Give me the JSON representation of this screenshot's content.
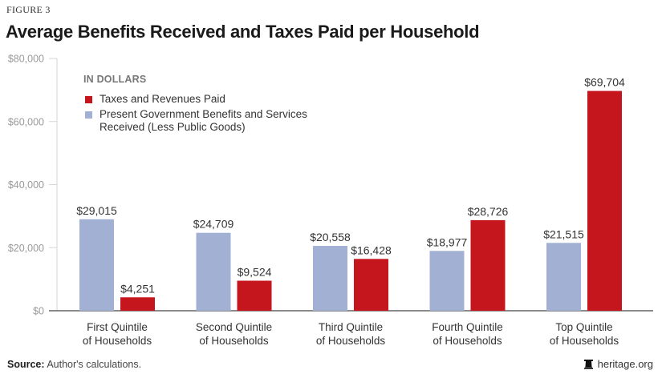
{
  "figure_label": "FIGURE 3",
  "title": "Average Benefits Received and Taxes Paid per Household",
  "legend": {
    "title": "IN DOLLARS",
    "items": [
      {
        "label": "Taxes and Revenues Paid",
        "color": "#c4161c"
      },
      {
        "label": "Present Government Benefits and Services Received (Less Public Goods)",
        "color": "#a2b1d3"
      }
    ]
  },
  "source": {
    "prefix": "Source:",
    "text": "Author's calculations."
  },
  "credit": {
    "icon": "liberty-bell-icon",
    "text": "heritage.org"
  },
  "chart_data": {
    "type": "bar",
    "title": "Average Benefits Received and Taxes Paid per Household",
    "xlabel": "",
    "ylabel": "",
    "ylim": [
      0,
      80000
    ],
    "yticks": [
      0,
      20000,
      40000,
      60000,
      80000
    ],
    "ytick_labels": [
      "$0",
      "$20,000",
      "$40,000",
      "$60,000",
      "$80,000"
    ],
    "grid": false,
    "legend_position": "top-left",
    "categories": [
      [
        "First Quintile",
        "of Households"
      ],
      [
        "Second Quintile",
        "of Households"
      ],
      [
        "Third Quintile",
        "of Households"
      ],
      [
        "Fourth Quintile",
        "of Households"
      ],
      [
        "Top Quintile",
        "of Households"
      ]
    ],
    "series": [
      {
        "name": "Present Government Benefits and Services Received (Less Public Goods)",
        "color": "#a2b1d3",
        "values": [
          29015,
          24709,
          20558,
          18977,
          21515
        ],
        "labels": [
          "$29,015",
          "$24,709",
          "$20,558",
          "$18,977",
          "$21,515"
        ]
      },
      {
        "name": "Taxes and Revenues Paid",
        "color": "#c4161c",
        "values": [
          4251,
          9524,
          16428,
          28726,
          69704
        ],
        "labels": [
          "$4,251",
          "$9,524",
          "$16,428",
          "$28,726",
          "$69,704"
        ]
      }
    ]
  }
}
